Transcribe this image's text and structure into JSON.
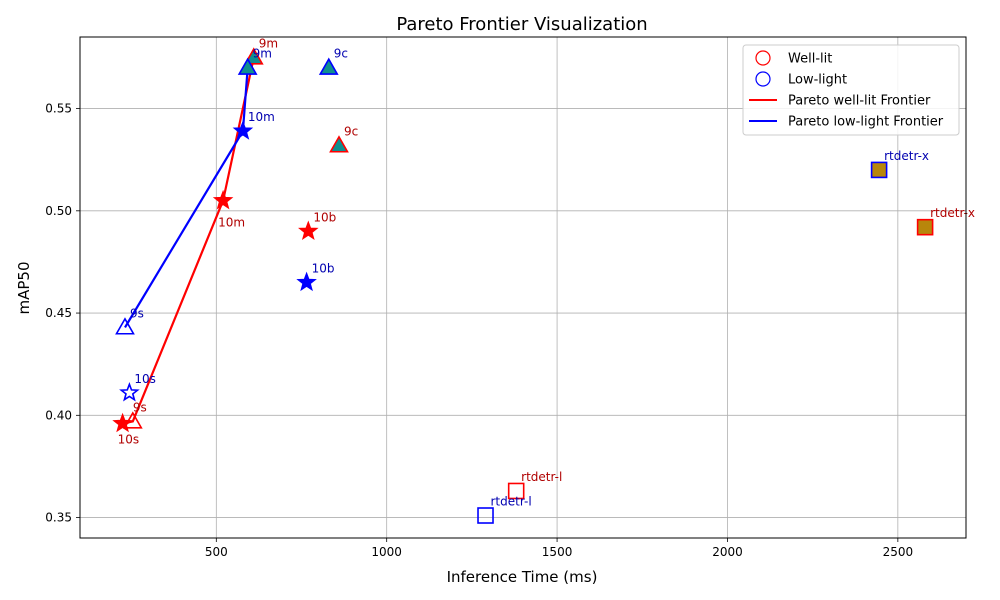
{
  "chart_data": {
    "type": "scatter",
    "title": "Pareto Frontier Visualization",
    "xlabel": "Inference Time (ms)",
    "ylabel": "mAP50",
    "xlim": [
      100,
      2700
    ],
    "ylim": [
      0.34,
      0.585
    ],
    "xticks": [
      500,
      1000,
      1500,
      2000,
      2500
    ],
    "yticks": [
      0.35,
      0.4,
      0.45,
      0.5,
      0.55
    ],
    "ytick_labels": [
      "0.35",
      "0.40",
      "0.45",
      "0.50",
      "0.55"
    ],
    "grid": true,
    "legend_placement": "top-right",
    "legend": [
      {
        "label": "Well-lit",
        "kind": "marker",
        "color": "#ff0000"
      },
      {
        "label": "Low-light",
        "kind": "marker",
        "color": "#0000ff"
      },
      {
        "label": "Pareto well-lit Frontier",
        "kind": "line",
        "color": "#ff0000"
      },
      {
        "label": "Pareto low-light Frontier",
        "kind": "line",
        "color": "#0000ff"
      }
    ],
    "colors": {
      "well": "#ff0000",
      "low": "#0000ff",
      "well_label": "#b00000",
      "low_label": "#0000b0",
      "teal": "#0f8f8f",
      "gold": "#b8860b"
    },
    "series": [
      {
        "name": "Well-lit",
        "color": "#ff0000",
        "points": [
          {
            "label": "10s",
            "x": 225,
            "y": 0.396,
            "marker": "star",
            "fill": "#ff0000"
          },
          {
            "label": "9s",
            "x": 255,
            "y": 0.397,
            "marker": "triangle",
            "fill": "none"
          },
          {
            "label": "10m",
            "x": 520,
            "y": 0.505,
            "marker": "star",
            "fill": "#ff0000"
          },
          {
            "label": "9m",
            "x": 610,
            "y": 0.575,
            "marker": "triangle",
            "fill": "#0f8f8f"
          },
          {
            "label": "10b",
            "x": 770,
            "y": 0.49,
            "marker": "star",
            "fill": "#ff0000"
          },
          {
            "label": "9c",
            "x": 860,
            "y": 0.532,
            "marker": "triangle",
            "fill": "#0f8f8f"
          },
          {
            "label": "rtdetr-l",
            "x": 1380,
            "y": 0.363,
            "marker": "square",
            "fill": "none"
          },
          {
            "label": "rtdetr-x",
            "x": 2580,
            "y": 0.492,
            "marker": "square",
            "fill": "#b8860b"
          }
        ]
      },
      {
        "name": "Low-light",
        "color": "#0000ff",
        "points": [
          {
            "label": "10s",
            "x": 245,
            "y": 0.411,
            "marker": "star",
            "fill": "none"
          },
          {
            "label": "9s",
            "x": 232,
            "y": 0.443,
            "marker": "triangle",
            "fill": "none"
          },
          {
            "label": "10m",
            "x": 578,
            "y": 0.539,
            "marker": "star",
            "fill": "#0000ff"
          },
          {
            "label": "9m",
            "x": 592,
            "y": 0.57,
            "marker": "triangle",
            "fill": "#0f8f8f"
          },
          {
            "label": "10b",
            "x": 765,
            "y": 0.465,
            "marker": "star",
            "fill": "#0000ff"
          },
          {
            "label": "9c",
            "x": 830,
            "y": 0.57,
            "marker": "triangle",
            "fill": "#0f8f8f"
          },
          {
            "label": "rtdetr-l",
            "x": 1290,
            "y": 0.351,
            "marker": "square",
            "fill": "none"
          },
          {
            "label": "rtdetr-x",
            "x": 2445,
            "y": 0.52,
            "marker": "square",
            "fill": "#b8860b"
          }
        ]
      }
    ],
    "frontiers": [
      {
        "name": "Pareto well-lit Frontier",
        "color": "#ff0000",
        "points": [
          [
            225,
            0.396
          ],
          [
            255,
            0.397
          ],
          [
            520,
            0.505
          ],
          [
            610,
            0.575
          ]
        ]
      },
      {
        "name": "Pareto low-light Frontier",
        "color": "#0000ff",
        "points": [
          [
            232,
            0.443
          ],
          [
            578,
            0.539
          ],
          [
            592,
            0.57
          ]
        ]
      }
    ]
  }
}
